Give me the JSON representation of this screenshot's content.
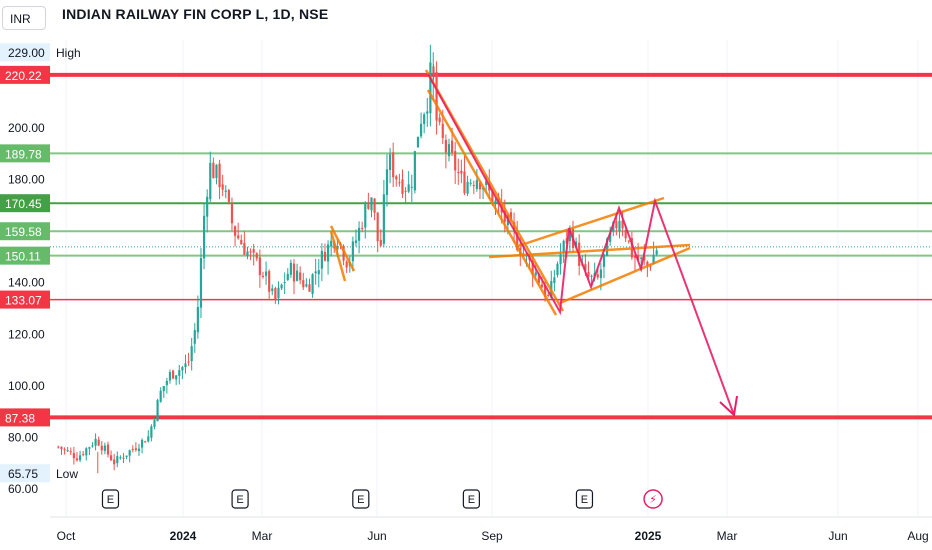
{
  "header": {
    "currency": "INR",
    "title": "INDIAN RAILWAY FIN CORP L, 1D, NSE"
  },
  "chart_data": {
    "type": "candlestick",
    "ylim": [
      57,
      234
    ],
    "y_ticks": [
      "60.00",
      "80.00",
      "100.00",
      "120.00",
      "140.00",
      "180.00",
      "200.00"
    ],
    "x_ticks": [
      "Oct",
      "2024",
      "Mar",
      "Jun",
      "Sep",
      "2025",
      "Mar",
      "Jun",
      "Aug"
    ],
    "x_tick_bold": [
      false,
      true,
      false,
      false,
      false,
      true,
      false,
      false,
      false
    ],
    "x_range": [
      0,
      17.5
    ],
    "x_tick_positions": [
      0.5,
      3.5,
      5.5,
      8.5,
      11.5,
      15.5,
      17.5,
      20.5,
      22.5
    ],
    "high": {
      "value": "229.00",
      "label": "High"
    },
    "low": {
      "value": "65.75",
      "label": "Low"
    },
    "levels": [
      {
        "value": 220.22,
        "label": "220.22",
        "color": "#f23645",
        "width": 4
      },
      {
        "value": 189.78,
        "label": "189.78",
        "color": "#81c784",
        "width": 2
      },
      {
        "value": 170.45,
        "label": "170.45",
        "color": "#43a047",
        "width": 2
      },
      {
        "value": 159.58,
        "label": "159.58",
        "color": "#81c784",
        "width": 2
      },
      {
        "value": 150.11,
        "label": "150.11",
        "color": "#81c784",
        "width": 2
      },
      {
        "value": 133.07,
        "label": "133.07",
        "color": "#f23645",
        "width": 1.5
      },
      {
        "value": 87.38,
        "label": "87.38",
        "color": "#f23645",
        "width": 4
      }
    ],
    "last_price": 153.5,
    "price_path": [
      [
        "2023-09-25",
        76
      ],
      [
        "2023-10-10",
        72
      ],
      [
        "2023-10-25",
        79
      ],
      [
        "2023-11-08",
        70
      ],
      [
        "2023-11-22",
        75
      ],
      [
        "2023-12-05",
        80
      ],
      [
        "2023-12-15",
        98
      ],
      [
        "2023-12-22",
        104
      ],
      [
        "2024-01-05",
        108
      ],
      [
        "2024-01-12",
        125
      ],
      [
        "2024-01-18",
        168
      ],
      [
        "2024-01-22",
        185
      ],
      [
        "2024-02-01",
        178
      ],
      [
        "2024-02-10",
        160
      ],
      [
        "2024-02-20",
        152
      ],
      [
        "2024-03-05",
        143
      ],
      [
        "2024-03-13",
        132
      ],
      [
        "2024-03-25",
        145
      ],
      [
        "2024-04-08",
        138
      ],
      [
        "2024-04-22",
        152
      ],
      [
        "2024-05-01",
        158
      ],
      [
        "2024-05-10",
        147
      ],
      [
        "2024-05-20",
        162
      ],
      [
        "2024-05-28",
        175
      ],
      [
        "2024-06-04",
        150
      ],
      [
        "2024-06-10",
        188
      ],
      [
        "2024-06-18",
        180
      ],
      [
        "2024-06-28",
        176
      ],
      [
        "2024-07-05",
        202
      ],
      [
        "2024-07-12",
        212
      ],
      [
        "2024-07-15",
        226
      ],
      [
        "2024-07-19",
        200
      ],
      [
        "2024-07-25",
        192
      ],
      [
        "2024-08-01",
        186
      ],
      [
        "2024-08-08",
        178
      ],
      [
        "2024-08-20",
        181
      ],
      [
        "2024-09-01",
        172
      ],
      [
        "2024-09-15",
        160
      ],
      [
        "2024-09-25",
        151
      ],
      [
        "2024-10-05",
        143
      ],
      [
        "2024-10-15",
        133
      ],
      [
        "2024-10-22",
        148
      ],
      [
        "2024-11-01",
        160
      ],
      [
        "2024-11-12",
        142
      ],
      [
        "2024-11-22",
        140
      ],
      [
        "2024-12-01",
        155
      ],
      [
        "2024-12-10",
        166
      ],
      [
        "2024-12-20",
        150
      ],
      [
        "2025-01-01",
        146
      ],
      [
        "2025-01-08",
        153
      ]
    ],
    "events": [
      {
        "type": "earnings",
        "label": "E",
        "date": "2023-11-05"
      },
      {
        "type": "earnings",
        "label": "E",
        "date": "2024-02-15"
      },
      {
        "type": "earnings",
        "label": "E",
        "date": "2024-05-20"
      },
      {
        "type": "earnings",
        "label": "E",
        "date": "2024-08-15"
      },
      {
        "type": "earnings",
        "label": "E",
        "date": "2024-11-12"
      },
      {
        "type": "dividend",
        "label": "⚡",
        "date": "2025-01-05"
      }
    ]
  }
}
